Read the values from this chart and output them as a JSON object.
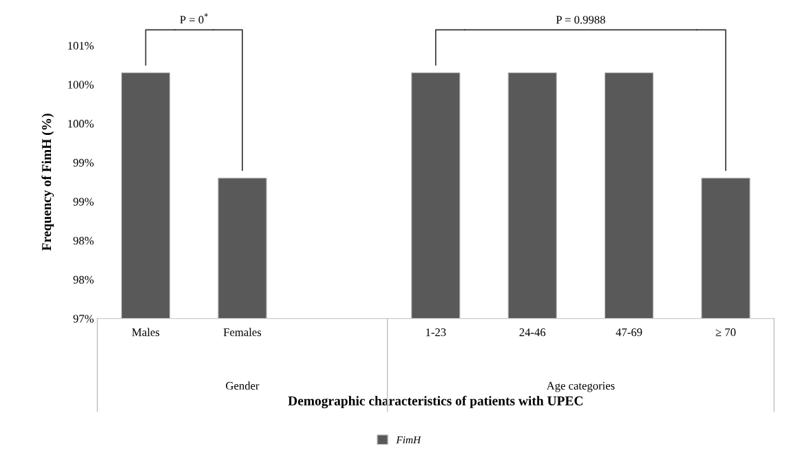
{
  "chart_data": {
    "type": "bar",
    "xlabel": "Demographic characteristics of patients with UPEC",
    "ylabel": "Frequency of FimH (%)",
    "categories": [
      "Males",
      "Females",
      null,
      "1-23",
      "24-46",
      "47-69",
      "≥ 70"
    ],
    "series": [
      {
        "name": "FimH",
        "color": "#595959",
        "values": [
          100.15,
          98.8,
          null,
          100.15,
          100.15,
          100.15,
          98.8
        ]
      }
    ],
    "ylim": [
      97,
      100.5
    ],
    "yticks": [
      {
        "value": 97,
        "label": "97%"
      },
      {
        "value": 97.5,
        "label": "98%"
      },
      {
        "value": 98,
        "label": "98%"
      },
      {
        "value": 98.5,
        "label": "99%"
      },
      {
        "value": 99,
        "label": "99%"
      },
      {
        "value": 99.5,
        "label": "100%"
      },
      {
        "value": 100,
        "label": "100%"
      },
      {
        "value": 100.5,
        "label": "101%"
      }
    ],
    "annotations": [
      "P = 0$^{*}$",
      "P = 0.9988",
      "Gender",
      "Age categories"
    ],
    "legend": "bottom",
    "grid": false
  }
}
